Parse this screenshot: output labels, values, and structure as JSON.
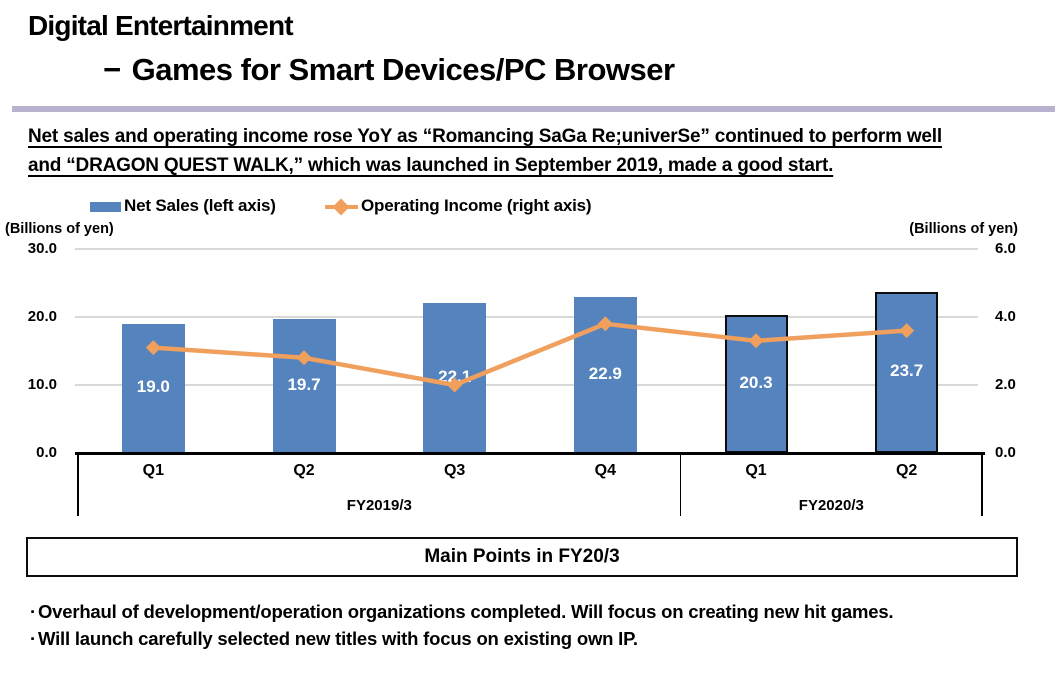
{
  "slide": {
    "title": "Digital Entertainment",
    "subtitle_dash": "−",
    "subtitle": "Games for Smart Devices/PC Browser",
    "headline_line1": "Net sales and operating income rose YoY as “Romancing SaGa Re;univerSe” continued to perform well",
    "headline_line2": "and “DRAGON QUEST WALK,” which was launched in September 2019, made a good start."
  },
  "legend": {
    "net_sales_label": "Net Sales (left axis)",
    "operating_income_label": "Operating Income (right axis)"
  },
  "chart_data": {
    "type": "bar",
    "categories": [
      "Q1",
      "Q2",
      "Q3",
      "Q4",
      "Q1",
      "Q2"
    ],
    "groups": [
      {
        "label": "FY2019/3",
        "count": 4
      },
      {
        "label": "FY2020/3",
        "count": 2
      }
    ],
    "series": [
      {
        "name": "Net Sales (left axis)",
        "type": "bar",
        "axis": "left",
        "values": [
          19.0,
          19.7,
          22.1,
          22.9,
          20.3,
          23.7
        ],
        "data_labels": [
          "19.0",
          "19.7",
          "22.1",
          "22.9",
          "20.3",
          "23.7"
        ],
        "highlight_indices": [
          4,
          5
        ]
      },
      {
        "name": "Operating Income (right axis)",
        "type": "line",
        "axis": "right",
        "values": [
          3.1,
          2.8,
          2.0,
          3.8,
          3.3,
          3.6
        ]
      }
    ],
    "left_axis": {
      "unit": "(Billions of yen)",
      "min": 0,
      "max": 30,
      "ticks": [
        {
          "v": 30,
          "label": "30.0"
        },
        {
          "v": 20,
          "label": "20.0"
        },
        {
          "v": 10,
          "label": "10.0"
        },
        {
          "v": 0,
          "label": "0.0"
        }
      ]
    },
    "right_axis": {
      "unit": "(Billions of yen)",
      "min": 0,
      "max": 6,
      "ticks": [
        {
          "v": 6,
          "label": "6.0"
        },
        {
          "v": 4,
          "label": "4.0"
        },
        {
          "v": 2,
          "label": "2.0"
        },
        {
          "v": 0,
          "label": "0.0"
        }
      ]
    },
    "grid": "on",
    "legend_position": "top"
  },
  "main_points": {
    "box_title": "Main Points in FY20/3",
    "bullet_char": "·",
    "bullets": [
      "Overhaul of development/operation organizations completed. Will focus on creating new hit games.",
      "Will launch carefully selected new titles with focus on existing own IP."
    ]
  },
  "colors": {
    "bar_blue": "#5583BE",
    "bar_highlight_border": "#0d0d0d",
    "line_orange": "#F0A05C",
    "accent_rule": "#B9B2CF",
    "grid_gray": "#D9D9D9",
    "text_black": "#000000"
  }
}
